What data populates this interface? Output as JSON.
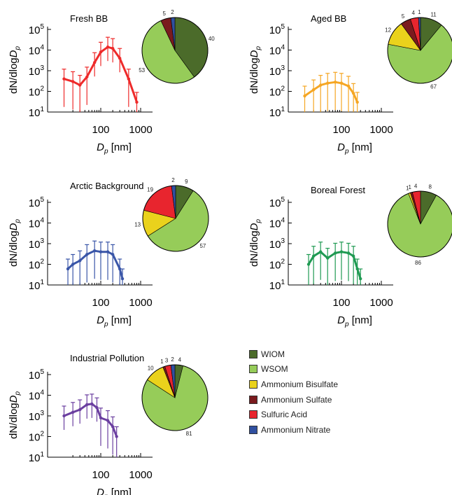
{
  "legend": {
    "title": "",
    "items": [
      {
        "label": "WIOM",
        "color": "#4b6b2a"
      },
      {
        "label": "WSOM",
        "color": "#96cc59"
      },
      {
        "label": "Ammonium Bisulfate",
        "color": "#ead21c"
      },
      {
        "label": "Ammonium Sulfate",
        "color": "#7a1a1e"
      },
      {
        "label": "Sulfuric Acid",
        "color": "#e8252e"
      },
      {
        "label": "Ammonium Nitrate",
        "color": "#3050a0"
      }
    ]
  },
  "chart_data": [
    {
      "type": "line",
      "title": "Fresh BB",
      "xlabel": "Dp [nm]",
      "ylabel": "dN/dlogDp",
      "xscale": "log",
      "yscale": "log",
      "xticks": [
        "100",
        "1000"
      ],
      "yticks": [
        "10^1",
        "10^2",
        "10^3",
        "10^4",
        "10^5"
      ],
      "ylim": [
        10,
        100000
      ],
      "color": "#ee2a2a",
      "x": [
        12,
        20,
        30,
        45,
        70,
        100,
        150,
        200,
        300,
        500,
        800
      ],
      "y": [
        400,
        300,
        200,
        500,
        2500,
        8000,
        14000,
        12000,
        4000,
        400,
        30
      ],
      "pie": [
        {
          "component": "WIOM",
          "value": 40
        },
        {
          "component": "WSOM",
          "value": 53
        },
        {
          "component": "Ammonium Sulfate",
          "value": 5
        },
        {
          "component": "Ammonium Nitrate",
          "value": 2
        }
      ]
    },
    {
      "type": "line",
      "title": "Aged BB",
      "xlabel": "Dp [nm]",
      "ylabel": "dN/dlogDp",
      "xscale": "log",
      "yscale": "log",
      "xticks": [
        "100",
        "1000"
      ],
      "yticks": [
        "10^1",
        "10^2",
        "10^3",
        "10^4",
        "10^5"
      ],
      "ylim": [
        10,
        100000
      ],
      "color": "#f5a623",
      "x": [
        12,
        20,
        30,
        45,
        70,
        100,
        150,
        200,
        250
      ],
      "y": [
        60,
        120,
        200,
        250,
        280,
        250,
        180,
        80,
        30
      ],
      "pie": [
        {
          "component": "WIOM",
          "value": 11
        },
        {
          "component": "WSOM",
          "value": 67
        },
        {
          "component": "Ammonium Bisulfate",
          "value": 12
        },
        {
          "component": "Ammonium Sulfate",
          "value": 5
        },
        {
          "component": "Sulfuric Acid",
          "value": 4
        },
        {
          "component": "Ammonium Nitrate",
          "value": 1
        }
      ]
    },
    {
      "type": "line",
      "title": "Arctic Background",
      "xlabel": "Dp [nm]",
      "ylabel": "dN/dlogDp",
      "xscale": "log",
      "yscale": "log",
      "xticks": [
        "100",
        "1000"
      ],
      "yticks": [
        "10^1",
        "10^2",
        "10^3",
        "10^4",
        "10^5"
      ],
      "ylim": [
        10,
        100000
      ],
      "color": "#3a56a8",
      "x": [
        15,
        20,
        30,
        45,
        70,
        100,
        150,
        200,
        300,
        350
      ],
      "y": [
        60,
        100,
        150,
        300,
        450,
        400,
        400,
        300,
        60,
        20
      ],
      "pie": [
        {
          "component": "WIOM",
          "value": 9
        },
        {
          "component": "WSOM",
          "value": 57
        },
        {
          "component": "Ammonium Bisulfate",
          "value": 13
        },
        {
          "component": "Sulfuric Acid",
          "value": 19
        },
        {
          "component": "Ammonium Nitrate",
          "value": 2
        }
      ]
    },
    {
      "type": "line",
      "title": "Boreal Forest",
      "xlabel": "Dp [nm]",
      "ylabel": "dN/dlogDp",
      "xscale": "log",
      "yscale": "log",
      "xticks": [
        "100",
        "1000"
      ],
      "yticks": [
        "10^1",
        "10^2",
        "10^3",
        "10^4",
        "10^5"
      ],
      "ylim": [
        10,
        100000
      ],
      "color": "#1f9a52",
      "x": [
        15,
        20,
        30,
        45,
        70,
        100,
        150,
        200,
        250,
        300
      ],
      "y": [
        100,
        250,
        400,
        200,
        350,
        400,
        350,
        250,
        60,
        20
      ],
      "pie": [
        {
          "component": "WIOM",
          "value": 8
        },
        {
          "component": "WSOM",
          "value": 86
        },
        {
          "component": "Sulfuric Acid",
          "value": 4
        },
        {
          "component": "Ammonium Sulfate",
          "value": 1
        },
        {
          "component": "Ammonium Bisulfate",
          "value": 1
        }
      ]
    },
    {
      "type": "line",
      "title": "Industrial Pollution",
      "xlabel": "Dp [nm]",
      "ylabel": "dN/dlogDp",
      "xscale": "log",
      "yscale": "log",
      "xticks": [
        "100",
        "1000"
      ],
      "yticks": [
        "10^1",
        "10^2",
        "10^3",
        "10^4",
        "10^5"
      ],
      "ylim": [
        10,
        100000
      ],
      "color": "#6b3fa0",
      "x": [
        12,
        20,
        30,
        45,
        60,
        80,
        100,
        150,
        200,
        250
      ],
      "y": [
        1000,
        1500,
        2000,
        3500,
        3800,
        2500,
        800,
        600,
        300,
        100
      ],
      "pie": [
        {
          "component": "WIOM",
          "value": 4
        },
        {
          "component": "WSOM",
          "value": 81
        },
        {
          "component": "Ammonium Bisulfate",
          "value": 10
        },
        {
          "component": "Ammonium Sulfate",
          "value": 1
        },
        {
          "component": "Sulfuric Acid",
          "value": 3
        },
        {
          "component": "Ammonium Nitrate",
          "value": 2
        }
      ]
    }
  ]
}
